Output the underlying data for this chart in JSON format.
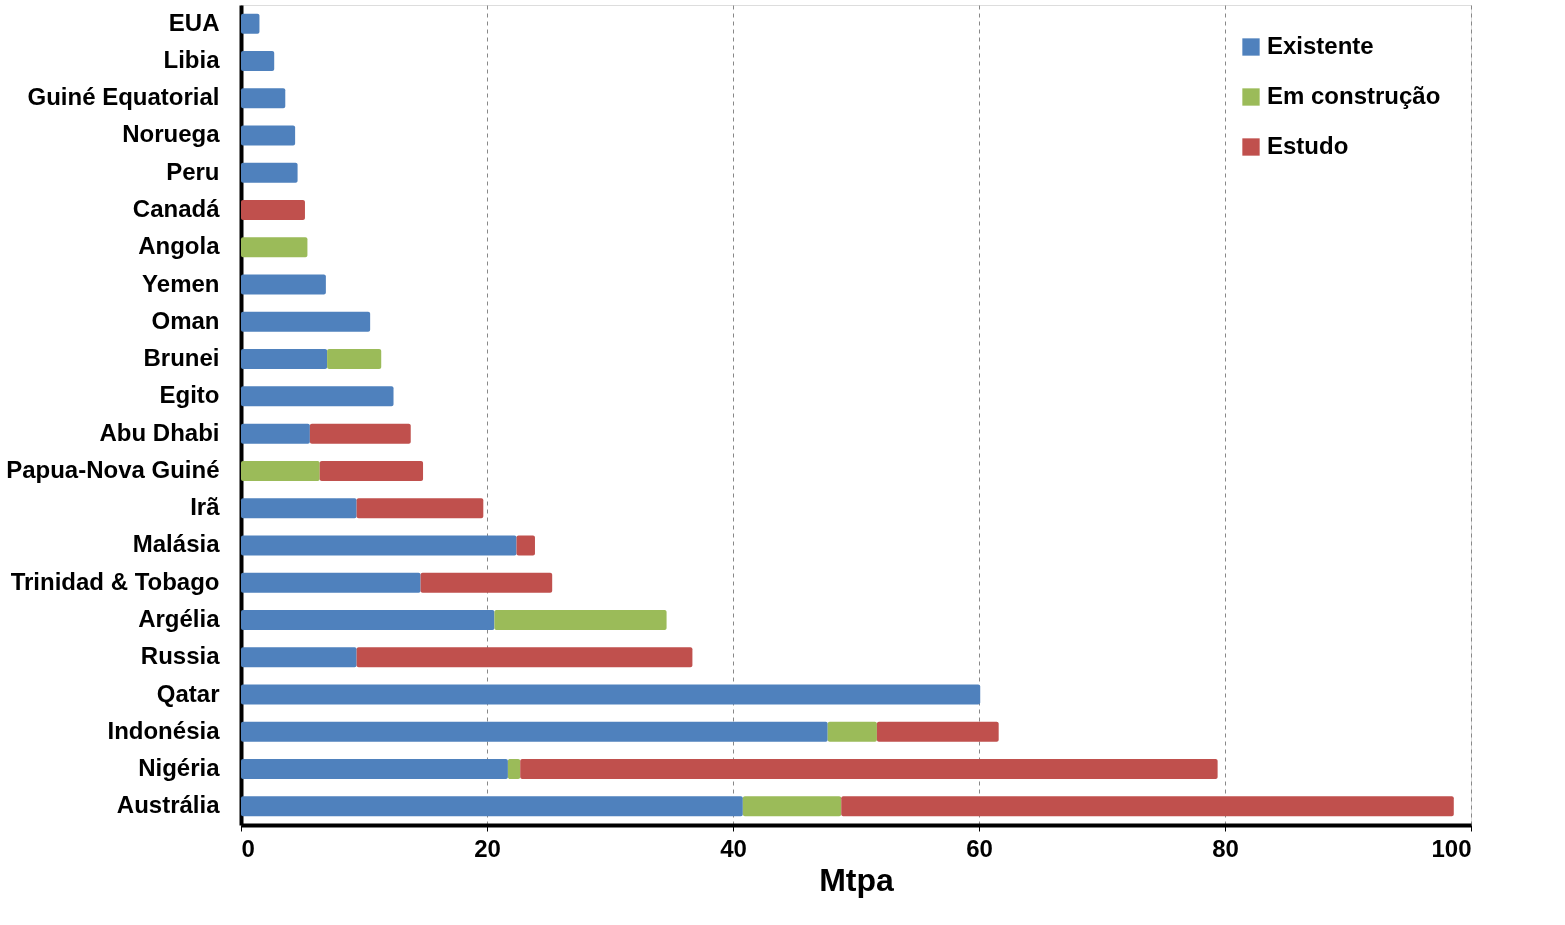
{
  "chart_data": {
    "type": "bar",
    "orientation": "horizontal",
    "stacked": true,
    "categories": [
      "EUA",
      "Libia",
      "Guiné Equatorial",
      "Noruega",
      "Peru",
      "Canadá",
      "Angola",
      "Yemen",
      "Oman",
      "Brunei",
      "Egito",
      "Abu Dhabi",
      "Papua-Nova Guiné",
      "Irã",
      "Malásia",
      "Trinidad & Tobago",
      "Argélia",
      "Russia",
      "Qatar",
      "Indonésia",
      "Nigéria",
      "Austrália"
    ],
    "series": [
      {
        "name": "Existente",
        "color": "#4f81bd",
        "values": [
          1.5,
          2.7,
          3.6,
          4.4,
          4.6,
          null,
          null,
          6.9,
          10.5,
          7.0,
          12.4,
          5.6,
          null,
          9.4,
          22.4,
          14.6,
          20.6,
          9.4,
          60.1,
          47.7,
          21.7,
          40.8
        ]
      },
      {
        "name": "Em construção",
        "color": "#9bbb59",
        "values": [
          null,
          null,
          null,
          null,
          null,
          null,
          5.4,
          null,
          null,
          4.4,
          null,
          null,
          6.4,
          null,
          null,
          null,
          14.0,
          null,
          null,
          4.0,
          1.0,
          8.0
        ]
      },
      {
        "name": "Estudo",
        "color": "#c0504d",
        "values": [
          null,
          null,
          null,
          null,
          null,
          5.2,
          null,
          null,
          null,
          null,
          null,
          8.2,
          8.4,
          10.3,
          1.5,
          10.7,
          null,
          27.3,
          null,
          9.9,
          56.7,
          49.8
        ]
      }
    ],
    "xlabel": "Mtpa",
    "xlim": [
      0,
      100
    ],
    "xticks": [
      0,
      20,
      40,
      60,
      80,
      100
    ],
    "grid": "x",
    "legend": "top right"
  }
}
